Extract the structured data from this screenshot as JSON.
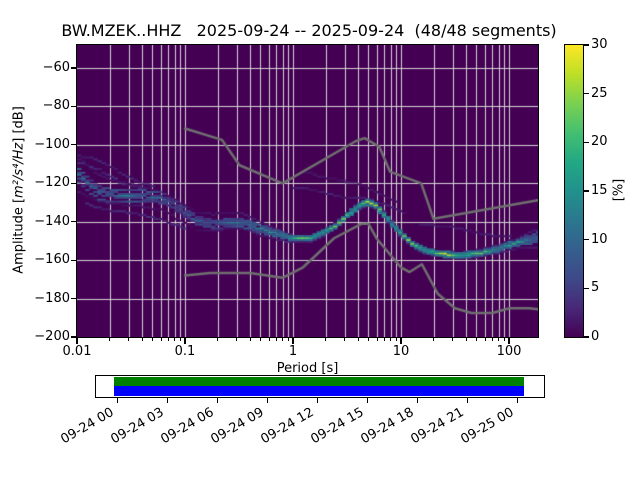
{
  "title": "BW.MZEK..HHZ   2025-09-24 -- 2025-09-24  (48/48 segments)",
  "axes": {
    "ylabel_prefix": "Amplitude [",
    "ylabel_math": "m²/s⁴/Hz",
    "ylabel_suffix": "] [dB]",
    "xlabel": "Period [s]",
    "x_tick_labels": [
      "0.01",
      "0.1",
      "1",
      "10",
      "100"
    ],
    "x_tick_values": [
      0.01,
      0.1,
      1,
      10,
      100
    ],
    "y_tick_labels": [
      "−60",
      "−80",
      "−100",
      "−120",
      "−140",
      "−160",
      "−180",
      "−200"
    ],
    "y_tick_values": [
      -60,
      -80,
      -100,
      -120,
      -140,
      -160,
      -180,
      -200
    ],
    "xlim": [
      0.01,
      185
    ],
    "ylim": [
      -200,
      -48
    ],
    "grid_color": "#d4d4d4",
    "background_color": "#440154"
  },
  "colorbar": {
    "label": "[%]",
    "tick_labels": [
      "0",
      "5",
      "10",
      "15",
      "20",
      "25",
      "30"
    ],
    "tick_values": [
      0,
      5,
      10,
      15,
      20,
      25,
      30
    ],
    "min": 0,
    "max": 30,
    "viridis": [
      "#440154",
      "#482878",
      "#3e4989",
      "#355f8d",
      "#2a788e",
      "#21918c",
      "#22a884",
      "#44bf70",
      "#7ad151",
      "#bddf26",
      "#fde725"
    ]
  },
  "timeline": {
    "labels": [
      "09-24 00",
      "09-24 03",
      "09-24 06",
      "09-24 09",
      "09-24 12",
      "09-24 15",
      "09-24 18",
      "09-24 21",
      "09-25 00"
    ],
    "green": "#008000",
    "blue": "#0000ff"
  },
  "chart_data": {
    "type": "heatmap",
    "station": "BW.MZEK..HHZ",
    "date_range": "2025-09-24 -- 2025-09-24",
    "segments": "48/48",
    "title": "BW.MZEK..HHZ   2025-09-24 -- 2025-09-24  (48/48 segments)",
    "xlabel": "Period [s]",
    "ylabel": "Amplitude [m²/s⁴/Hz] [dB]",
    "colorbar_label": "[%]",
    "x_scale": "log",
    "xlim": [
      0.01,
      185
    ],
    "ylim": [
      -200,
      -48
    ],
    "clim": [
      0,
      30
    ],
    "colormap": "viridis",
    "grid": true,
    "ridge": {
      "period": [
        0.01,
        0.013,
        0.016,
        0.022,
        0.03,
        0.045,
        0.06,
        0.08,
        0.1,
        0.13,
        0.18,
        0.25,
        0.33,
        0.42,
        0.55,
        0.75,
        1.0,
        1.4,
        1.8,
        2.5,
        3.2,
        4.3,
        5.0,
        5.8,
        7.0,
        8.5,
        10.5,
        13.0,
        17.0,
        24.0,
        35.0,
        50.0,
        70.0,
        100.0,
        130.0,
        185.0
      ],
      "db": [
        -114.5,
        -120,
        -124,
        -125.5,
        -126,
        -126.5,
        -127.5,
        -131,
        -135,
        -139,
        -140.5,
        -140,
        -139.5,
        -141.5,
        -144,
        -146,
        -148.3,
        -148.3,
        -146,
        -141.5,
        -136,
        -130.5,
        -129.3,
        -131,
        -136,
        -141.5,
        -147,
        -151.5,
        -154.5,
        -156.3,
        -157,
        -156.2,
        -154.5,
        -151.8,
        -149.8,
        -147.8
      ],
      "pct": [
        15,
        11,
        13,
        11,
        14,
        12,
        11,
        9,
        9,
        10,
        11,
        12,
        14,
        16,
        16,
        18,
        22,
        24,
        25,
        24,
        26,
        28,
        29,
        27,
        25,
        24,
        24,
        25,
        26,
        28,
        27,
        24,
        22,
        20,
        17,
        14
      ]
    },
    "spread": {
      "period": [
        0.01,
        0.02,
        0.04,
        0.08,
        0.15,
        0.3,
        0.5,
        0.8,
        1.2,
        2.0,
        5.0,
        10,
        20,
        40,
        70,
        110,
        185
      ],
      "halfwidth_db": [
        13,
        9,
        7,
        7,
        6.5,
        6,
        4.5,
        3,
        2.2,
        2.0,
        2.2,
        2.0,
        1.8,
        2.0,
        2.6,
        3.5,
        6.5
      ]
    },
    "wisps": [
      {
        "period": [
          1.0,
          1.8,
          3.0,
          5.0,
          8.0,
          11.0
        ],
        "db": [
          -122,
          -124,
          -126,
          -128.5,
          -131.5,
          -134.5
        ],
        "pct": 2.5
      },
      {
        "period": [
          1.3,
          2.5,
          4.0,
          6.5,
          9.5
        ],
        "db": [
          -114,
          -117,
          -120.5,
          -124.5,
          -128.5
        ],
        "pct": 1.8
      },
      {
        "period": [
          0.01,
          0.014,
          0.02,
          0.03,
          0.05
        ],
        "db": [
          -104,
          -107,
          -111,
          -116,
          -121
        ],
        "pct": 3
      },
      {
        "period": [
          0.01,
          0.016,
          0.026,
          0.042
        ],
        "db": [
          -108.5,
          -113,
          -118.5,
          -122.5
        ],
        "pct": 4
      },
      {
        "period": [
          15,
          25,
          40,
          70,
          110
        ],
        "db": [
          -140,
          -142,
          -144,
          -146,
          -147.5
        ],
        "pct": 2.2
      },
      {
        "period": [
          0.012,
          0.02,
          0.035,
          0.06,
          0.1
        ],
        "db": [
          -130,
          -133,
          -136,
          -137.5,
          -143
        ],
        "pct": 3.5
      }
    ],
    "noise_models": {
      "nhnm": {
        "period": [
          0.1,
          0.22,
          0.32,
          0.8,
          3.8,
          4.6,
          6.3,
          7.9,
          15.4,
          20.0,
          185.0
        ],
        "db": [
          -91.5,
          -97.4,
          -110.6,
          -120.0,
          -98.1,
          -96.5,
          -101.0,
          -113.9,
          -120.0,
          -138.5,
          -128.8
        ]
      },
      "nlnm": {
        "period": [
          0.1,
          0.17,
          0.4,
          0.8,
          1.24,
          2.4,
          4.3,
          5.0,
          6.0,
          10.0,
          12.0,
          15.6,
          21.9,
          31.6,
          45.0,
          70.0,
          101.0,
          154.0,
          185.0
        ],
        "db": [
          -168.0,
          -166.7,
          -166.7,
          -169.2,
          -163.7,
          -148.6,
          -141.1,
          -141.1,
          -149.0,
          -163.8,
          -166.2,
          -162.1,
          -177.5,
          -185.0,
          -187.5,
          -187.5,
          -185.0,
          -185.0,
          -185.6
        ]
      },
      "color": "#6f6f6f"
    },
    "coverage_timeline": {
      "tick_labels": [
        "09-24 00",
        "09-24 03",
        "09-24 06",
        "09-24 09",
        "09-24 12",
        "09-24 15",
        "09-24 18",
        "09-24 21",
        "09-25 00"
      ],
      "bars": [
        {
          "name": "data-coverage",
          "color": "#008000"
        },
        {
          "name": "gaps-track",
          "color": "#0000ff"
        }
      ]
    }
  }
}
